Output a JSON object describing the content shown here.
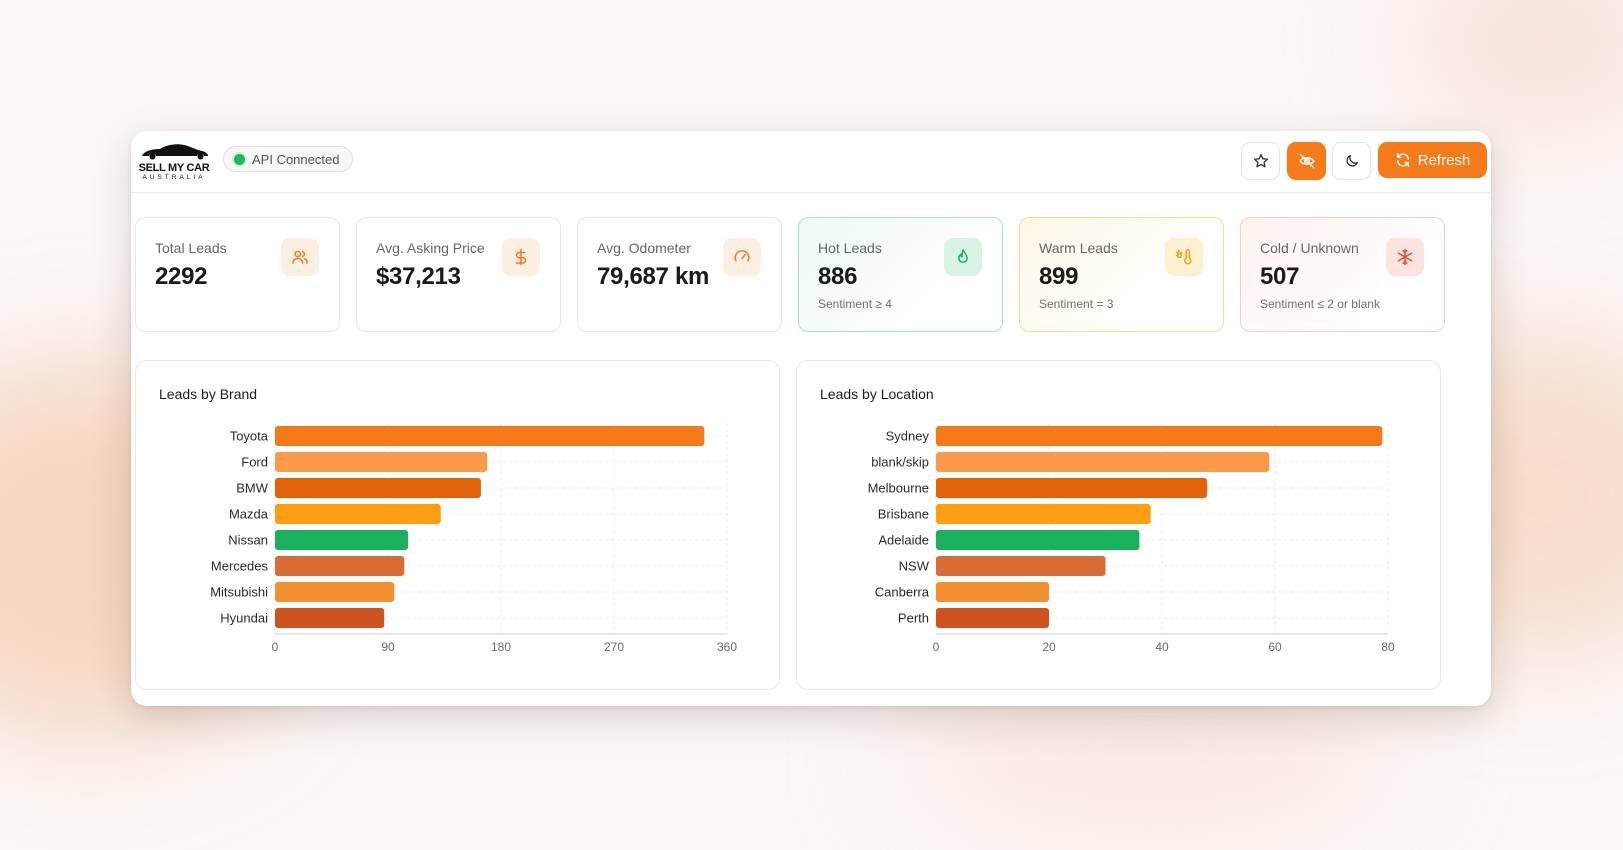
{
  "app": {
    "logo": {
      "line1": "SELL MY CAR",
      "line2": "AUSTRALIA"
    },
    "api_status": {
      "label": "API Connected",
      "color": "#22b364"
    }
  },
  "toolbar": {
    "favorite_icon": "star-icon",
    "hide_icon": "eye-off-icon",
    "theme_icon": "moon-icon",
    "refresh_label": "Refresh",
    "accent_color": "#f47a1a"
  },
  "stats": [
    {
      "label": "Total Leads",
      "value": "2292",
      "sub": "",
      "icon": "users-icon"
    },
    {
      "label": "Avg. Asking Price",
      "value": "$37,213",
      "sub": "",
      "icon": "dollar-icon"
    },
    {
      "label": "Avg. Odometer",
      "value": "79,687 km",
      "sub": "",
      "icon": "gauge-icon"
    },
    {
      "label": "Hot Leads",
      "value": "886",
      "sub": "Sentiment ≥ 4",
      "icon": "flame-icon"
    },
    {
      "label": "Warm Leads",
      "value": "899",
      "sub": "Sentiment = 3",
      "icon": "thermometer-sun-icon"
    },
    {
      "label": "Cold / Unknown",
      "value": "507",
      "sub": "Sentiment ≤ 2 or blank",
      "icon": "snowflake-icon"
    }
  ],
  "chart_data": [
    {
      "type": "bar",
      "orientation": "horizontal",
      "title": "Leads by Brand",
      "categories": [
        "Toyota",
        "Ford",
        "BMW",
        "Mazda",
        "Nissan",
        "Mercedes",
        "Mitsubishi",
        "Hyundai"
      ],
      "values": [
        342,
        169,
        164,
        132,
        106,
        103,
        95,
        87
      ],
      "xlim": [
        0,
        360
      ],
      "xticks": [
        0,
        90,
        180,
        270,
        360
      ],
      "grid": true,
      "colors": [
        "#f47a1a",
        "#fb9a4b",
        "#e2620a",
        "#fd9e10",
        "#1bb05d",
        "#d96c34",
        "#f28f30",
        "#cf531f"
      ]
    },
    {
      "type": "bar",
      "orientation": "horizontal",
      "title": "Leads by Location",
      "categories": [
        "Sydney",
        "blank/skip",
        "Melbourne",
        "Brisbane",
        "Adelaide",
        "NSW",
        "Canberra",
        "Perth"
      ],
      "values": [
        79,
        59,
        48,
        38,
        36,
        30,
        20,
        20
      ],
      "xlim": [
        0,
        80
      ],
      "xticks": [
        0,
        20,
        40,
        60,
        80
      ],
      "grid": true,
      "colors": [
        "#f47a1a",
        "#fb9a4b",
        "#e2620a",
        "#fd9e10",
        "#1bb05d",
        "#d96c34",
        "#f28f30",
        "#cf531f"
      ]
    }
  ]
}
